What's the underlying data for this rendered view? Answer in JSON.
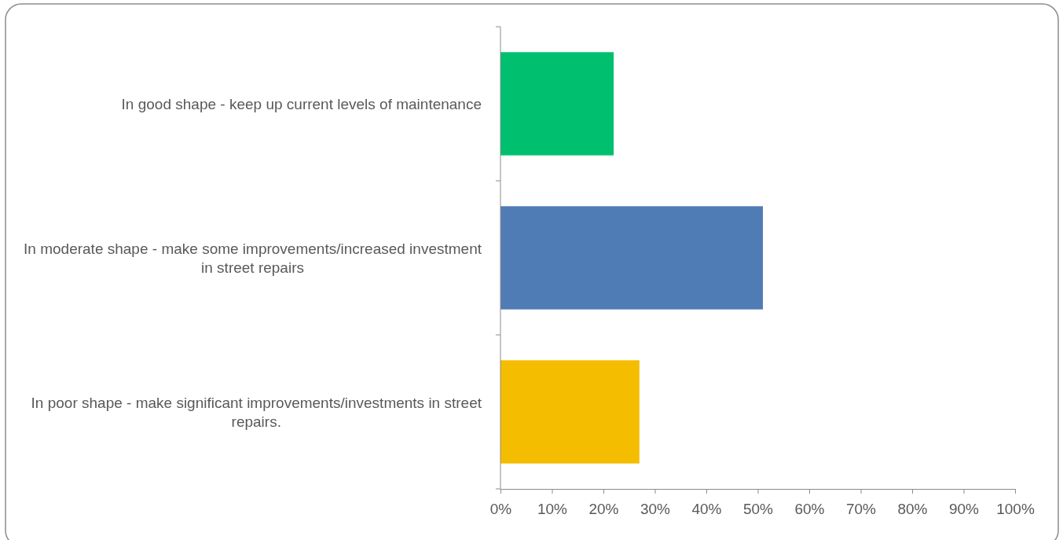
{
  "chart_data": {
    "type": "bar",
    "orientation": "horizontal",
    "categories": [
      "In good shape - keep up current levels of maintenance",
      "In moderate shape - make some improvements/increased investment in street repairs",
      "In poor shape - make significant improvements/investments in street repairs."
    ],
    "values": [
      22,
      51,
      27
    ],
    "colors": [
      "#00bf6f",
      "#4f7cb5",
      "#f5bd00"
    ],
    "xlim": [
      0,
      100
    ],
    "xticks": [
      {
        "value": 0,
        "label": "0%"
      },
      {
        "value": 10,
        "label": "10%"
      },
      {
        "value": 20,
        "label": "20%"
      },
      {
        "value": 30,
        "label": "30%"
      },
      {
        "value": 40,
        "label": "40%"
      },
      {
        "value": 50,
        "label": "50%"
      },
      {
        "value": 60,
        "label": "60%"
      },
      {
        "value": 70,
        "label": "70%"
      },
      {
        "value": 80,
        "label": "80%"
      },
      {
        "value": 90,
        "label": "90%"
      },
      {
        "value": 100,
        "label": "100%"
      }
    ],
    "grid": false
  }
}
